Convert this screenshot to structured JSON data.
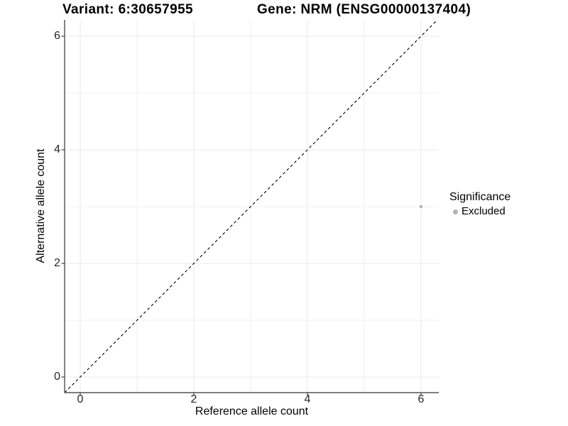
{
  "chart_data": {
    "type": "scatter",
    "title_left": "Variant: 6:30657955",
    "title_right": "Gene: NRM (ENSG00000137404)",
    "xlabel": "Reference allele count",
    "ylabel": "Alternative allele count",
    "xlim": [
      -0.3,
      6.3
    ],
    "ylim": [
      -0.3,
      6.3
    ],
    "x_ticks": [
      0,
      2,
      4,
      6
    ],
    "x_tick_labels": [
      "0",
      "2",
      "4",
      "6"
    ],
    "y_ticks": [
      0,
      2,
      4,
      6
    ],
    "y_tick_labels": [
      "0",
      "2",
      "4",
      "6"
    ],
    "minor_gridlines_x": [
      1,
      3,
      5
    ],
    "minor_gridlines_y": [
      1,
      3,
      5
    ],
    "grid": true,
    "legend_position": "right",
    "reference_line": {
      "type": "identity y=x",
      "style": "dashed",
      "color": "#000000"
    },
    "series": [
      {
        "name": "Excluded",
        "color": "#b5b5b5",
        "points": [
          {
            "x": 6,
            "y": 3
          }
        ]
      }
    ],
    "legend": {
      "title": "Significance",
      "entries": [
        {
          "label": "Excluded",
          "color": "#b5b5b5"
        }
      ]
    },
    "colors": {
      "grid_major": "#e8e8e8",
      "grid_minor": "#efefef",
      "axis": "#333333",
      "point": "#b5b5b5",
      "tick_label": "#262626"
    }
  }
}
